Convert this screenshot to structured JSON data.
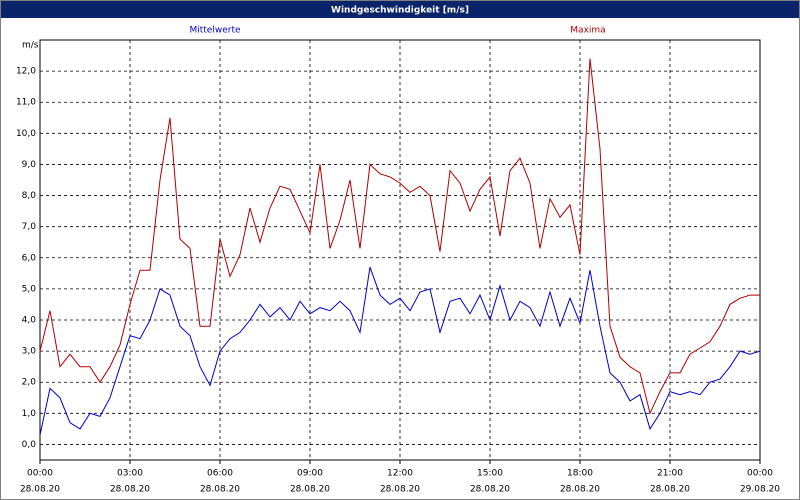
{
  "chart_data": {
    "type": "line",
    "title": "Windgeschwindigkeit [m/s]",
    "y_unit": "m/s",
    "x": [
      0,
      20,
      40,
      60,
      80,
      100,
      120,
      140,
      160,
      180,
      200,
      220,
      240,
      260,
      280,
      300,
      320,
      340,
      360,
      380,
      400,
      420,
      440,
      460,
      480,
      500,
      520,
      540,
      560,
      580,
      600,
      620,
      640,
      660,
      680,
      700,
      720,
      740,
      760,
      780,
      800,
      820,
      840,
      860,
      880,
      900,
      920,
      940,
      960,
      980,
      1000,
      1020,
      1040,
      1060,
      1080,
      1100,
      1120,
      1140,
      1160,
      1180,
      1200,
      1220,
      1240,
      1260,
      1280,
      1300,
      1320,
      1340,
      1360,
      1380,
      1400,
      1420,
      1440
    ],
    "series": [
      {
        "name": "Mittelwerte",
        "color": "#0000cc",
        "values": [
          0.3,
          1.8,
          1.5,
          0.7,
          0.5,
          1.0,
          0.9,
          1.5,
          2.5,
          3.5,
          3.4,
          4.0,
          5.0,
          4.8,
          3.8,
          3.5,
          2.5,
          1.9,
          3.0,
          3.4,
          3.6,
          4.0,
          4.5,
          4.1,
          4.4,
          4.0,
          4.6,
          4.2,
          4.4,
          4.3,
          4.6,
          4.3,
          3.6,
          5.7,
          4.8,
          4.5,
          4.7,
          4.3,
          4.9,
          5.0,
          3.6,
          4.6,
          4.7,
          4.2,
          4.8,
          4.0,
          5.1,
          4.0,
          4.6,
          4.4,
          3.8,
          4.9,
          3.8,
          4.7,
          3.9,
          5.6,
          3.8,
          2.3,
          2.0,
          1.4,
          1.6,
          0.5,
          1.0,
          1.7,
          1.6,
          1.7,
          1.6,
          2.0,
          2.1,
          2.5,
          3.0,
          2.9,
          3.0
        ]
      },
      {
        "name": "Maxima",
        "color": "#b00000",
        "values": [
          3.0,
          4.3,
          2.5,
          2.9,
          2.5,
          2.5,
          2.0,
          2.5,
          3.2,
          4.5,
          5.6,
          5.6,
          8.5,
          10.5,
          6.6,
          6.3,
          3.8,
          3.8,
          6.6,
          5.4,
          6.1,
          7.6,
          6.5,
          7.6,
          8.3,
          8.2,
          7.5,
          6.8,
          9.0,
          6.3,
          7.2,
          8.5,
          6.3,
          9.0,
          8.7,
          8.6,
          8.4,
          8.1,
          8.3,
          8.0,
          6.2,
          8.8,
          8.4,
          7.5,
          8.2,
          8.6,
          6.7,
          8.8,
          9.2,
          8.4,
          6.3,
          7.9,
          7.3,
          7.7,
          6.1,
          12.4,
          9.5,
          3.8,
          2.8,
          2.5,
          2.3,
          1.0,
          1.7,
          2.3,
          2.3,
          2.9,
          3.1,
          3.3,
          3.8,
          4.5,
          4.7,
          4.8,
          4.8
        ]
      }
    ],
    "xlim": [
      0,
      1440
    ],
    "xticks": [
      {
        "value": 0,
        "label": "00:00"
      },
      {
        "value": 180,
        "label": "03:00"
      },
      {
        "value": 360,
        "label": "06:00"
      },
      {
        "value": 540,
        "label": "09:00"
      },
      {
        "value": 720,
        "label": "12:00"
      },
      {
        "value": 900,
        "label": "15:00"
      },
      {
        "value": 1080,
        "label": "18:00"
      },
      {
        "value": 1260,
        "label": "21:00"
      },
      {
        "value": 1440,
        "label": "00:00"
      }
    ],
    "xtick_dates": [
      "28.08.20",
      "28.08.20",
      "28.08.20",
      "28.08.20",
      "28.08.20",
      "28.08.20",
      "28.08.20",
      "28.08.20",
      "29.08.20"
    ],
    "ylim": [
      -0.5,
      13
    ],
    "yticks": [
      {
        "value": 0,
        "label": "0,0"
      },
      {
        "value": 1,
        "label": "1,0"
      },
      {
        "value": 2,
        "label": "2,0"
      },
      {
        "value": 3,
        "label": "3,0"
      },
      {
        "value": 4,
        "label": "4,0"
      },
      {
        "value": 5,
        "label": "5,0"
      },
      {
        "value": 6,
        "label": "6,0"
      },
      {
        "value": 7,
        "label": "7,0"
      },
      {
        "value": 8,
        "label": "8,0"
      },
      {
        "value": 9,
        "label": "9,0"
      },
      {
        "value": 10,
        "label": "10,0"
      },
      {
        "value": 11,
        "label": "11,0"
      },
      {
        "value": 12,
        "label": "12,0"
      }
    ],
    "grid": true
  }
}
